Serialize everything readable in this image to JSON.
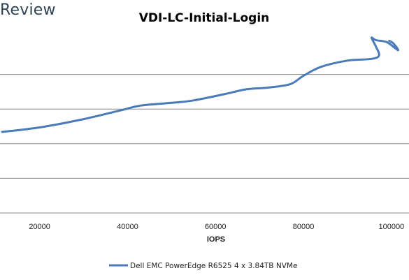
{
  "brand": "Review",
  "chart_data": {
    "type": "line",
    "title": "VDI-LC-Initial-Login",
    "xlabel": "IOPS",
    "ylabel": "",
    "xlim": [
      11000,
      104000
    ],
    "xticks": [
      20000,
      40000,
      60000,
      80000,
      100000
    ],
    "ylim": [
      0,
      5
    ],
    "yticks": [
      0,
      1,
      2,
      3,
      4,
      5
    ],
    "grid": true,
    "legend_position": "bottom",
    "series": [
      {
        "name": "Dell EMC PowerEdge R6525 4 x 3.84TB NVMe",
        "color": "#4a7ab8",
        "x": [
          11500,
          20000,
          30000,
          38000,
          43000,
          50000,
          55000,
          62000,
          67000,
          72000,
          77000,
          80000,
          84000,
          90000,
          95500,
          97200,
          96500,
          95500,
          96500,
          99000,
          101500,
          100500,
          99500
        ],
        "y": [
          2.34,
          2.47,
          2.71,
          2.95,
          3.1,
          3.18,
          3.25,
          3.43,
          3.57,
          3.62,
          3.72,
          3.96,
          4.22,
          4.4,
          4.45,
          4.55,
          4.8,
          5.06,
          4.99,
          4.93,
          4.7,
          4.89,
          4.97
        ]
      }
    ]
  }
}
